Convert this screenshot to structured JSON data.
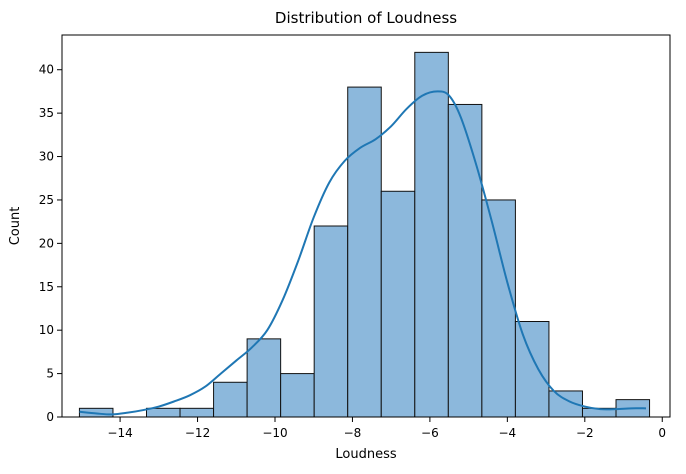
{
  "chart_data": {
    "type": "bar",
    "title": "Distribution of Loudness",
    "xlabel": "Loudness",
    "ylabel": "Count",
    "xlim": [
      -15.5,
      0.2
    ],
    "ylim": [
      0,
      44
    ],
    "xticks": [
      -14,
      -12,
      -10,
      -8,
      -6,
      -4,
      -2,
      0
    ],
    "xtick_labels": [
      "−14",
      "−12",
      "−10",
      "−8",
      "−6",
      "−4",
      "−2",
      "0"
    ],
    "yticks": [
      0,
      5,
      10,
      15,
      20,
      25,
      30,
      35,
      40
    ],
    "ytick_labels": [
      "0",
      "5",
      "10",
      "15",
      "20",
      "25",
      "30",
      "35",
      "40"
    ],
    "bin_start": -15.05,
    "bin_width": 0.866,
    "values": [
      1,
      0,
      1,
      1,
      4,
      9,
      5,
      22,
      38,
      26,
      42,
      36,
      25,
      11,
      3,
      1,
      2
    ],
    "kde": {
      "x": [
        -15.05,
        -14.6,
        -14.2,
        -13.8,
        -13.4,
        -13.0,
        -12.6,
        -12.2,
        -11.8,
        -11.4,
        -11.0,
        -10.6,
        -10.2,
        -9.8,
        -9.4,
        -9.0,
        -8.6,
        -8.2,
        -7.8,
        -7.4,
        -7.0,
        -6.6,
        -6.2,
        -5.8,
        -5.5,
        -5.2,
        -4.8,
        -4.4,
        -4.0,
        -3.6,
        -3.2,
        -2.8,
        -2.4,
        -2.0,
        -1.6,
        -1.2,
        -0.8,
        -0.42
      ],
      "y": [
        0.6,
        0.4,
        0.3,
        0.5,
        0.8,
        1.2,
        1.8,
        2.5,
        3.5,
        5.0,
        6.5,
        8.0,
        10.0,
        13.5,
        18.0,
        23.0,
        27.0,
        29.5,
        31.0,
        32.0,
        33.5,
        35.5,
        37.0,
        37.5,
        37.0,
        34.5,
        29.0,
        22.5,
        15.5,
        9.5,
        5.5,
        3.0,
        1.8,
        1.2,
        0.9,
        0.9,
        1.0,
        1.0
      ]
    },
    "bar_color": "#8cb8dc",
    "bar_edge": "#111111",
    "line_color": "#1f77b4",
    "grid": false,
    "legend": "none"
  }
}
